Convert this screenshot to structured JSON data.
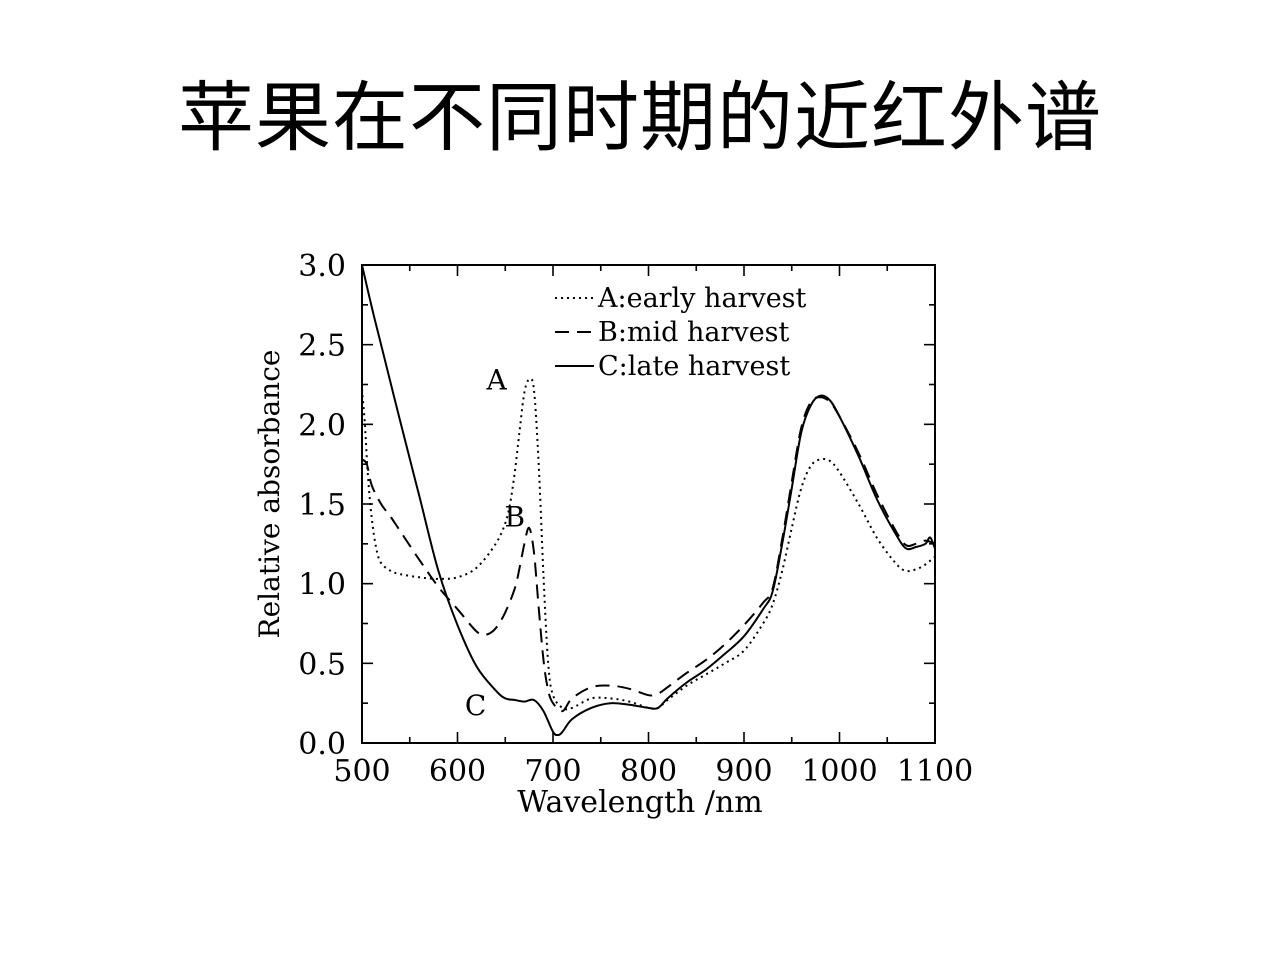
{
  "slide": {
    "title": "苹果在不同时期的近红外谱"
  },
  "chart_data": {
    "type": "line",
    "title": "",
    "xlabel": "Wavelength /nm",
    "ylabel": "Relative absorbance",
    "xlim": [
      500,
      1100
    ],
    "ylim": [
      0.0,
      3.0
    ],
    "xticks": [
      "500",
      "600",
      "700",
      "800",
      "900",
      "1000",
      "1100"
    ],
    "yticks": [
      "0.0",
      "0.5",
      "1.0",
      "1.5",
      "2.0",
      "2.5",
      "3.0"
    ],
    "grid": false,
    "legend_position": "top-right",
    "series": [
      {
        "name": "A:early harvest",
        "line_style": "dotted",
        "color": "#000000",
        "x": [
          500,
          503,
          506,
          510,
          515,
          520,
          530,
          540,
          560,
          580,
          600,
          620,
          640,
          650,
          655,
          660,
          665,
          670,
          675,
          680,
          685,
          690,
          695,
          700,
          710,
          720,
          740,
          760,
          780,
          800,
          810,
          820,
          840,
          860,
          880,
          900,
          920,
          930,
          940,
          950,
          960,
          970,
          980,
          990,
          1000,
          1020,
          1040,
          1060,
          1070,
          1080,
          1090,
          1100
        ],
        "y": [
          2.22,
          2.0,
          1.7,
          1.42,
          1.22,
          1.13,
          1.08,
          1.06,
          1.04,
          1.03,
          1.04,
          1.1,
          1.25,
          1.38,
          1.5,
          1.7,
          1.96,
          2.2,
          2.28,
          2.22,
          1.75,
          1.05,
          0.5,
          0.3,
          0.22,
          0.22,
          0.28,
          0.28,
          0.26,
          0.22,
          0.22,
          0.27,
          0.36,
          0.43,
          0.5,
          0.58,
          0.75,
          0.87,
          1.08,
          1.35,
          1.6,
          1.74,
          1.78,
          1.77,
          1.7,
          1.5,
          1.28,
          1.12,
          1.08,
          1.09,
          1.12,
          1.17
        ]
      },
      {
        "name": "B:mid harvest",
        "line_style": "dashed",
        "color": "#000000",
        "x": [
          500,
          505,
          510,
          520,
          530,
          540,
          560,
          580,
          600,
          620,
          630,
          640,
          650,
          660,
          665,
          670,
          675,
          680,
          685,
          690,
          695,
          700,
          710,
          720,
          740,
          760,
          780,
          800,
          810,
          820,
          840,
          860,
          880,
          900,
          920,
          930,
          940,
          950,
          960,
          970,
          980,
          990,
          1000,
          1020,
          1040,
          1060,
          1070,
          1080,
          1090,
          1100
        ],
        "y": [
          1.78,
          1.75,
          1.62,
          1.5,
          1.42,
          1.33,
          1.15,
          0.98,
          0.84,
          0.7,
          0.68,
          0.72,
          0.82,
          0.97,
          1.1,
          1.25,
          1.35,
          1.2,
          0.85,
          0.52,
          0.33,
          0.25,
          0.2,
          0.28,
          0.35,
          0.36,
          0.34,
          0.3,
          0.31,
          0.35,
          0.44,
          0.52,
          0.62,
          0.74,
          0.88,
          0.97,
          1.28,
          1.64,
          1.98,
          2.14,
          2.17,
          2.14,
          2.05,
          1.82,
          1.55,
          1.32,
          1.24,
          1.25,
          1.27,
          1.25
        ]
      },
      {
        "name": "C:late harvest",
        "line_style": "solid",
        "color": "#000000",
        "x": [
          500,
          510,
          520,
          540,
          560,
          580,
          600,
          620,
          640,
          650,
          660,
          670,
          680,
          690,
          700,
          705,
          710,
          720,
          740,
          760,
          780,
          800,
          810,
          820,
          840,
          860,
          880,
          900,
          920,
          930,
          940,
          950,
          960,
          970,
          980,
          990,
          1000,
          1020,
          1040,
          1060,
          1070,
          1080,
          1090,
          1095,
          1100
        ],
        "y": [
          3.0,
          2.74,
          2.5,
          2.02,
          1.55,
          1.08,
          0.74,
          0.48,
          0.33,
          0.28,
          0.27,
          0.26,
          0.27,
          0.2,
          0.07,
          0.05,
          0.07,
          0.15,
          0.22,
          0.25,
          0.24,
          0.22,
          0.22,
          0.28,
          0.38,
          0.46,
          0.56,
          0.67,
          0.84,
          0.95,
          1.25,
          1.6,
          1.95,
          2.12,
          2.18,
          2.15,
          2.05,
          1.8,
          1.52,
          1.3,
          1.22,
          1.23,
          1.25,
          1.29,
          1.22
        ]
      }
    ],
    "annotations": [
      {
        "text": "A"
      },
      {
        "text": "B"
      },
      {
        "text": "C"
      }
    ]
  }
}
